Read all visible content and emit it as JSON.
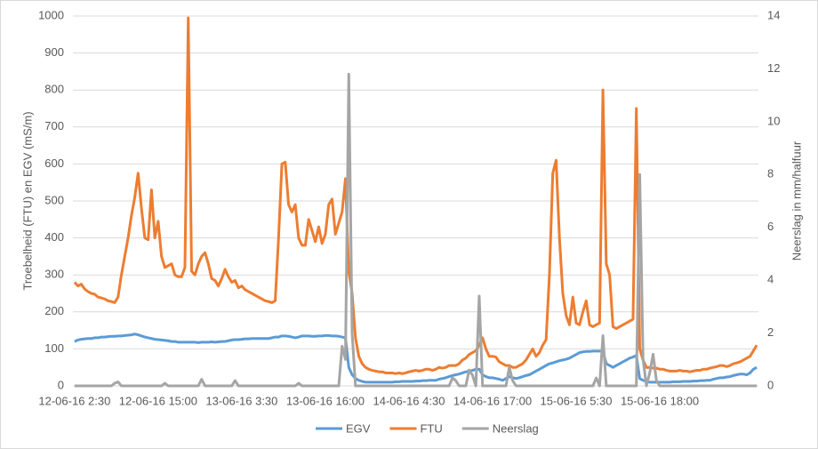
{
  "chart_data": {
    "type": "line",
    "y_label": "Troebelheid (FTU) en EGV (mS/m)",
    "y2_label": "Neerslag in mm/halfuur",
    "categories": [
      "12-06-16 2:30",
      null,
      null,
      null,
      null,
      null,
      null,
      null,
      null,
      null,
      null,
      null,
      null,
      null,
      null,
      null,
      null,
      null,
      null,
      null,
      null,
      null,
      null,
      null,
      null,
      "12-06-16 15:00",
      null,
      null,
      null,
      null,
      null,
      null,
      null,
      null,
      null,
      null,
      null,
      null,
      null,
      null,
      null,
      null,
      null,
      null,
      null,
      null,
      null,
      null,
      null,
      null,
      "13-06-16 3:30",
      null,
      null,
      null,
      null,
      null,
      null,
      null,
      null,
      null,
      null,
      null,
      null,
      null,
      null,
      null,
      null,
      null,
      null,
      null,
      null,
      null,
      null,
      null,
      null,
      "13-06-16 16:00",
      null,
      null,
      null,
      null,
      null,
      null,
      null,
      null,
      null,
      null,
      null,
      null,
      null,
      null,
      null,
      null,
      null,
      null,
      null,
      null,
      null,
      null,
      null,
      null,
      "14-06-16 4:30",
      null,
      null,
      null,
      null,
      null,
      null,
      null,
      null,
      null,
      null,
      null,
      null,
      null,
      null,
      null,
      null,
      null,
      null,
      null,
      null,
      null,
      null,
      null,
      null,
      "14-06-16 17:00",
      null,
      null,
      null,
      null,
      null,
      null,
      null,
      null,
      null,
      null,
      null,
      null,
      null,
      null,
      null,
      null,
      null,
      null,
      null,
      null,
      null,
      null,
      null,
      null,
      "15-06-16 5:30",
      null,
      null,
      null,
      null,
      null,
      null,
      null,
      null,
      null,
      null,
      null,
      null,
      null,
      null,
      null,
      null,
      null,
      null,
      null,
      null,
      null,
      null,
      null,
      null,
      "15-06-16 18:00",
      null,
      null,
      null,
      null,
      null,
      null,
      null,
      null,
      null,
      null,
      null,
      null,
      null,
      null,
      null,
      null,
      null,
      null,
      null,
      null,
      null,
      null,
      null,
      null,
      null,
      null,
      null,
      null,
      null
    ],
    "series": [
      {
        "name": "EGV",
        "color": "#5b9bd5",
        "values": [
          120,
          124,
          126,
          127,
          128,
          128,
          130,
          130,
          132,
          132,
          133,
          134,
          134,
          135,
          135,
          136,
          137,
          138,
          140,
          138,
          135,
          132,
          130,
          128,
          126,
          125,
          124,
          123,
          122,
          120,
          120,
          118,
          118,
          118,
          118,
          118,
          118,
          117,
          118,
          118,
          118,
          119,
          118,
          119,
          120,
          120,
          122,
          124,
          125,
          125,
          126,
          127,
          127,
          128,
          128,
          128,
          128,
          128,
          128,
          130,
          132,
          132,
          135,
          135,
          134,
          132,
          130,
          132,
          135,
          135,
          135,
          134,
          134,
          135,
          135,
          136,
          136,
          135,
          135,
          134,
          132,
          130,
          50,
          30,
          20,
          15,
          12,
          10,
          10,
          10,
          10,
          10,
          10,
          10,
          10,
          10,
          11,
          11,
          12,
          12,
          12,
          12,
          13,
          13,
          14,
          14,
          15,
          15,
          15,
          18,
          20,
          22,
          25,
          28,
          30,
          32,
          35,
          38,
          40,
          42,
          45,
          45,
          30,
          25,
          22,
          22,
          20,
          18,
          15,
          20,
          25,
          22,
          20,
          22,
          25,
          28,
          30,
          35,
          40,
          45,
          50,
          55,
          60,
          62,
          65,
          68,
          70,
          72,
          75,
          80,
          85,
          90,
          92,
          93,
          93,
          94,
          94,
          94,
          93,
          60,
          55,
          50,
          55,
          60,
          65,
          70,
          75,
          78,
          82,
          20,
          15,
          12,
          10,
          10,
          10,
          10,
          10,
          10,
          10,
          11,
          11,
          11,
          12,
          12,
          12,
          13,
          13,
          14,
          14,
          15,
          15,
          18,
          20,
          22,
          22,
          24,
          25,
          28,
          30,
          32,
          32,
          30,
          35,
          45,
          50
        ]
      },
      {
        "name": "FTU",
        "color": "#ed7d31",
        "values": [
          280,
          270,
          275,
          262,
          255,
          250,
          248,
          240,
          238,
          235,
          230,
          228,
          225,
          240,
          300,
          350,
          400,
          460,
          510,
          575,
          480,
          400,
          395,
          530,
          400,
          445,
          350,
          320,
          325,
          330,
          300,
          295,
          295,
          320,
          995,
          310,
          300,
          330,
          350,
          360,
          330,
          290,
          285,
          270,
          290,
          315,
          295,
          280,
          285,
          265,
          270,
          260,
          255,
          250,
          245,
          240,
          235,
          230,
          228,
          225,
          230,
          400,
          600,
          605,
          490,
          470,
          490,
          400,
          380,
          380,
          450,
          420,
          390,
          430,
          385,
          410,
          490,
          505,
          410,
          440,
          470,
          560,
          310,
          250,
          130,
          80,
          60,
          50,
          45,
          42,
          40,
          38,
          38,
          35,
          35,
          35,
          33,
          35,
          33,
          35,
          38,
          40,
          42,
          40,
          42,
          45,
          45,
          42,
          45,
          50,
          48,
          50,
          55,
          55,
          55,
          60,
          70,
          75,
          85,
          90,
          95,
          110,
          130,
          100,
          80,
          80,
          78,
          65,
          60,
          55,
          55,
          50,
          50,
          55,
          60,
          70,
          85,
          100,
          80,
          90,
          110,
          125,
          300,
          575,
          610,
          400,
          250,
          190,
          165,
          240,
          170,
          165,
          200,
          230,
          165,
          160,
          165,
          170,
          800,
          330,
          300,
          160,
          155,
          160,
          165,
          170,
          175,
          180,
          750,
          100,
          70,
          50,
          50,
          48,
          48,
          45,
          45,
          42,
          40,
          40,
          40,
          42,
          40,
          40,
          38,
          40,
          42,
          42,
          45,
          45,
          48,
          50,
          52,
          55,
          55,
          52,
          55,
          60,
          62,
          65,
          70,
          75,
          80,
          95,
          110
        ]
      },
      {
        "name": "Neerslag",
        "color": "#a5a5a5",
        "axis": "y2",
        "values": [
          0,
          0,
          0,
          0,
          0,
          0,
          0,
          0,
          0,
          0,
          0,
          0,
          0.1,
          0.15,
          0,
          0,
          0,
          0,
          0,
          0,
          0,
          0,
          0,
          0,
          0,
          0,
          0,
          0.1,
          0,
          0,
          0,
          0,
          0,
          0,
          0,
          0,
          0,
          0,
          0.25,
          0,
          0,
          0,
          0,
          0,
          0,
          0,
          0,
          0,
          0.2,
          0,
          0,
          0,
          0,
          0,
          0,
          0,
          0,
          0,
          0,
          0,
          0,
          0,
          0,
          0,
          0,
          0,
          0,
          0.1,
          0,
          0,
          0,
          0,
          0,
          0,
          0,
          0,
          0,
          0,
          0,
          0,
          1.5,
          1,
          11.8,
          2,
          0,
          0,
          0,
          0,
          0,
          0,
          0,
          0,
          0,
          0,
          0,
          0,
          0,
          0,
          0,
          0,
          0,
          0,
          0,
          0,
          0,
          0,
          0,
          0,
          0,
          0,
          0,
          0,
          0,
          0.3,
          0.2,
          0,
          0,
          0,
          0.6,
          0.4,
          0,
          3.4,
          0,
          0,
          0,
          0,
          0,
          0,
          0,
          0,
          0.7,
          0.2,
          0,
          0,
          0,
          0,
          0,
          0,
          0,
          0,
          0,
          0,
          0,
          0,
          0,
          0,
          0,
          0,
          0,
          0,
          0,
          0,
          0,
          0,
          0,
          0,
          0.3,
          0,
          1.9,
          0,
          0,
          0,
          0,
          0,
          0,
          0,
          0,
          0,
          0,
          8,
          1,
          0,
          0.5,
          1.2,
          0.2,
          0,
          0,
          0,
          0,
          0,
          0,
          0,
          0,
          0,
          0,
          0,
          0,
          0,
          0,
          0,
          0,
          0,
          0,
          0,
          0,
          0,
          0,
          0,
          0,
          0,
          0,
          0,
          0,
          0,
          0
        ]
      }
    ],
    "ylim": [
      0,
      1000
    ],
    "yticks": [
      0,
      100,
      200,
      300,
      400,
      500,
      600,
      700,
      800,
      900,
      1000
    ],
    "y2lim": [
      0,
      14
    ],
    "y2ticks": [
      0,
      2,
      4,
      6,
      8,
      10,
      12,
      14
    ],
    "grid": true,
    "legend": "bottom"
  }
}
